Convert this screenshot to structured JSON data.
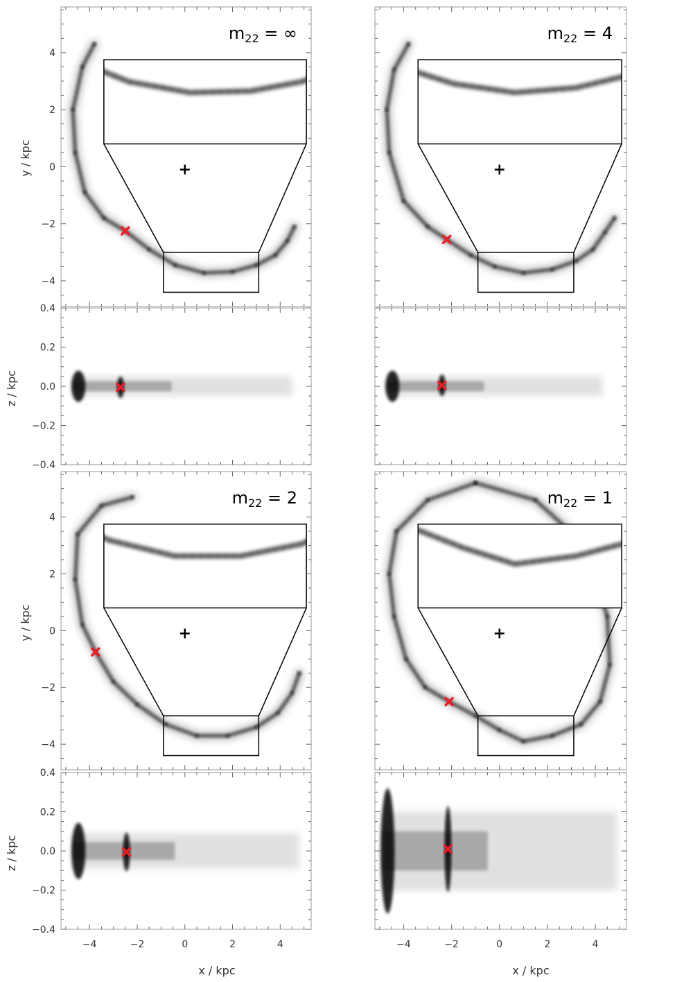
{
  "figure": {
    "x_axis_label": "x / kpc",
    "y_axis_label": "y / kpc",
    "z_axis_label": "z / kpc"
  },
  "chart_data": [
    {
      "type": "scatter",
      "panel": "xy",
      "title_base": "m",
      "title_sub": "22",
      "title_value": " = ∞",
      "xlim": [
        -5.2,
        5.3
      ],
      "ylim": [
        -4.9,
        5.6
      ],
      "x_ticks": [
        -4,
        -2,
        0,
        2,
        4
      ],
      "y_ticks": [
        -4,
        -2,
        0,
        2,
        4
      ],
      "show_y_tick_labels": true,
      "center_marker": [
        0,
        -0.1
      ],
      "red_marker": [
        -2.5,
        -2.25
      ],
      "zoom_box": [
        -0.9,
        3.1,
        -4.4,
        -3.0
      ],
      "inset_rect": [
        -3.4,
        5.1,
        0.8,
        3.75
      ],
      "stream": [
        [
          -3.8,
          4.3
        ],
        [
          -4.3,
          3.5
        ],
        [
          -4.7,
          2.0
        ],
        [
          -4.6,
          0.5
        ],
        [
          -4.2,
          -0.9
        ],
        [
          -3.4,
          -1.8
        ],
        [
          -2.5,
          -2.25
        ],
        [
          -1.5,
          -2.9
        ],
        [
          -0.4,
          -3.45
        ],
        [
          0.8,
          -3.72
        ],
        [
          2.0,
          -3.68
        ],
        [
          3.0,
          -3.45
        ],
        [
          3.8,
          -3.1
        ],
        [
          4.3,
          -2.6
        ],
        [
          4.6,
          -2.1
        ]
      ]
    },
    {
      "type": "scatter",
      "panel": "xz",
      "xlim": [
        -5.2,
        5.3
      ],
      "ylim": [
        -0.4,
        0.4
      ],
      "x_ticks": [
        -4,
        -2,
        0,
        2,
        4
      ],
      "y_ticks": [
        -0.4,
        -0.2,
        0.0,
        0.2,
        0.4
      ],
      "y_tick_labels": [
        "−0.4",
        "−0.2",
        "0.0",
        "0.2",
        "0.4"
      ],
      "show_y_tick_labels": true,
      "red_marker": [
        -2.7,
        -0.005
      ],
      "stream_extent": [
        -4.7,
        4.5
      ],
      "stream_halfwidth": 0.05
    },
    {
      "type": "scatter",
      "panel": "xy",
      "title_base": "m",
      "title_sub": "22",
      "title_value": " = 4",
      "xlim": [
        -5.2,
        5.3
      ],
      "ylim": [
        -4.9,
        5.6
      ],
      "x_ticks": [
        -4,
        -2,
        0,
        2,
        4
      ],
      "y_ticks": [
        -4,
        -2,
        0,
        2,
        4
      ],
      "show_y_tick_labels": false,
      "center_marker": [
        0,
        -0.1
      ],
      "red_marker": [
        -2.2,
        -2.55
      ],
      "zoom_box": [
        -0.9,
        3.1,
        -4.4,
        -3.0
      ],
      "inset_rect": [
        -3.4,
        5.1,
        0.8,
        3.75
      ],
      "stream": [
        [
          -3.8,
          4.3
        ],
        [
          -4.4,
          3.4
        ],
        [
          -4.7,
          2.0
        ],
        [
          -4.6,
          0.5
        ],
        [
          -4.0,
          -1.2
        ],
        [
          -3.0,
          -2.1
        ],
        [
          -2.2,
          -2.55
        ],
        [
          -1.2,
          -3.1
        ],
        [
          -0.2,
          -3.5
        ],
        [
          1.0,
          -3.72
        ],
        [
          2.2,
          -3.6
        ],
        [
          3.2,
          -3.3
        ],
        [
          3.9,
          -2.9
        ],
        [
          4.4,
          -2.3
        ],
        [
          4.8,
          -1.8
        ]
      ]
    },
    {
      "type": "scatter",
      "panel": "xz",
      "xlim": [
        -5.2,
        5.3
      ],
      "ylim": [
        -0.4,
        0.4
      ],
      "x_ticks": [
        -4,
        -2,
        0,
        2,
        4
      ],
      "y_ticks": [
        -0.4,
        -0.2,
        0.0,
        0.2,
        0.4
      ],
      "y_tick_labels": [
        "−0.4",
        "−0.2",
        "0.0",
        "0.2",
        "0.4"
      ],
      "show_y_tick_labels": false,
      "red_marker": [
        -2.4,
        0.005
      ],
      "stream_extent": [
        -4.7,
        4.3
      ],
      "stream_halfwidth": 0.05
    },
    {
      "type": "scatter",
      "panel": "xy",
      "title_base": "m",
      "title_sub": "22",
      "title_value": " = 2",
      "xlim": [
        -5.2,
        5.3
      ],
      "ylim": [
        -4.9,
        5.6
      ],
      "x_ticks": [
        -4,
        -2,
        0,
        2,
        4
      ],
      "y_ticks": [
        -4,
        -2,
        0,
        2,
        4
      ],
      "show_y_tick_labels": true,
      "center_marker": [
        0,
        -0.1
      ],
      "red_marker": [
        -3.75,
        -0.75
      ],
      "zoom_box": [
        -0.9,
        3.1,
        -4.4,
        -3.0
      ],
      "inset_rect": [
        -3.4,
        5.1,
        0.8,
        3.75
      ],
      "stream": [
        [
          -2.2,
          4.7
        ],
        [
          -3.5,
          4.4
        ],
        [
          -4.5,
          3.4
        ],
        [
          -4.6,
          1.8
        ],
        [
          -4.3,
          0.2
        ],
        [
          -3.75,
          -0.75
        ],
        [
          -3.0,
          -1.8
        ],
        [
          -2.0,
          -2.6
        ],
        [
          -0.8,
          -3.3
        ],
        [
          0.5,
          -3.7
        ],
        [
          1.8,
          -3.7
        ],
        [
          3.0,
          -3.4
        ],
        [
          3.9,
          -2.9
        ],
        [
          4.5,
          -2.2
        ],
        [
          4.8,
          -1.5
        ]
      ]
    },
    {
      "type": "scatter",
      "panel": "xz",
      "xlim": [
        -5.2,
        5.3
      ],
      "ylim": [
        -0.4,
        0.4
      ],
      "x_ticks": [
        -4,
        -2,
        0,
        2,
        4
      ],
      "y_ticks": [
        -0.4,
        -0.2,
        0.0,
        0.2,
        0.4
      ],
      "y_tick_labels": [
        "−0.4",
        "−0.2",
        "0.0",
        "0.2",
        "0.4"
      ],
      "show_y_tick_labels": true,
      "red_marker": [
        -2.45,
        -0.005
      ],
      "stream_extent": [
        -4.7,
        4.8
      ],
      "stream_halfwidth": 0.09
    },
    {
      "type": "scatter",
      "panel": "xy",
      "title_base": "m",
      "title_sub": "22",
      "title_value": " = 1",
      "xlim": [
        -5.2,
        5.3
      ],
      "ylim": [
        -4.9,
        5.6
      ],
      "x_ticks": [
        -4,
        -2,
        0,
        2,
        4
      ],
      "y_ticks": [
        -4,
        -2,
        0,
        2,
        4
      ],
      "show_y_tick_labels": false,
      "center_marker": [
        0,
        -0.1
      ],
      "red_marker": [
        -2.1,
        -2.5
      ],
      "zoom_box": [
        -0.9,
        3.1,
        -4.4,
        -3.0
      ],
      "inset_rect": [
        -3.4,
        5.1,
        0.8,
        3.75
      ],
      "stream": [
        [
          -1.0,
          5.2
        ],
        [
          -3.0,
          4.6
        ],
        [
          -4.3,
          3.5
        ],
        [
          -4.6,
          2.0
        ],
        [
          -4.4,
          0.5
        ],
        [
          -3.9,
          -1.0
        ],
        [
          -3.1,
          -2.0
        ],
        [
          -2.1,
          -2.5
        ],
        [
          -1.0,
          -3.0
        ],
        [
          0.0,
          -3.5
        ],
        [
          1.0,
          -3.9
        ],
        [
          2.2,
          -3.7
        ],
        [
          3.4,
          -3.3
        ],
        [
          4.2,
          -2.5
        ],
        [
          4.6,
          -1.2
        ],
        [
          4.5,
          0.5
        ],
        [
          3.6,
          3.0
        ],
        [
          1.5,
          4.6
        ],
        [
          -1.0,
          5.2
        ]
      ]
    },
    {
      "type": "scatter",
      "panel": "xz",
      "xlim": [
        -5.2,
        5.3
      ],
      "ylim": [
        -0.4,
        0.4
      ],
      "x_ticks": [
        -4,
        -2,
        0,
        2,
        4
      ],
      "y_ticks": [
        -0.4,
        -0.2,
        0.0,
        0.2,
        0.4
      ],
      "y_tick_labels": [
        "−0.4",
        "−0.2",
        "0.0",
        "0.2",
        "0.4"
      ],
      "show_y_tick_labels": false,
      "red_marker": [
        -2.15,
        0.01
      ],
      "stream_extent": [
        -4.9,
        4.9
      ],
      "stream_halfwidth": 0.2
    }
  ]
}
